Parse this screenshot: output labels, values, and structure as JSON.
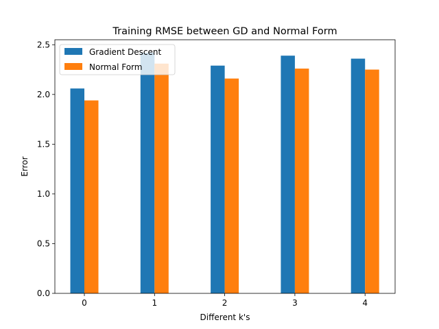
{
  "chart_data": {
    "type": "bar",
    "title": "Training RMSE between GD and Normal Form",
    "xlabel": "Different k's",
    "ylabel": "Error",
    "categories": [
      "0",
      "1",
      "2",
      "3",
      "4"
    ],
    "series": [
      {
        "name": "Gradient Descent",
        "color": "#1f77b4",
        "values": [
          2.06,
          2.42,
          2.29,
          2.39,
          2.36
        ]
      },
      {
        "name": "Normal Form",
        "color": "#ff7f0e",
        "values": [
          1.94,
          2.31,
          2.16,
          2.26,
          2.25
        ]
      }
    ],
    "ylim": [
      0,
      2.55
    ],
    "yticks": [
      "0.0",
      "0.5",
      "1.0",
      "1.5",
      "2.0",
      "2.5"
    ],
    "grid": false,
    "legend": "top-left"
  }
}
